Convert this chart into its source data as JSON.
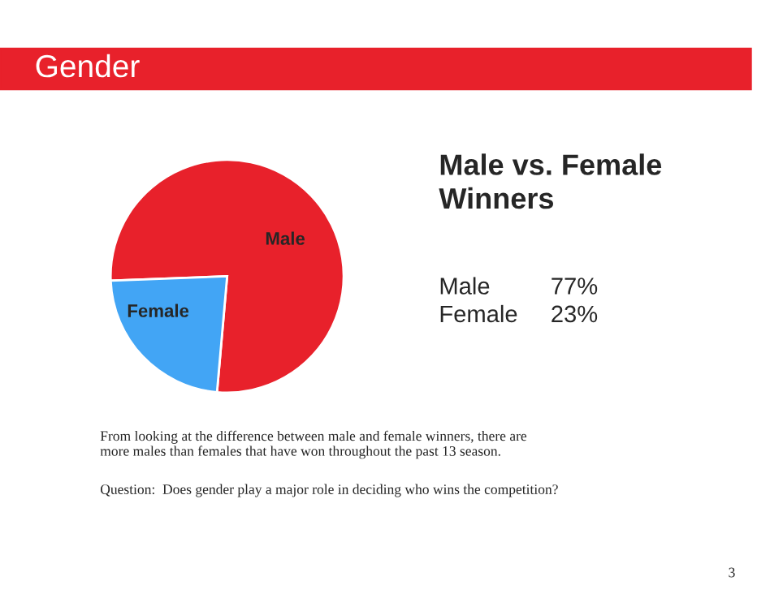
{
  "chart_data": {
    "type": "pie",
    "title": "Gender",
    "subtitle": "Male vs. Female\nWinners",
    "categories": [
      "Male",
      "Female"
    ],
    "values": [
      77,
      23
    ],
    "colors": [
      "#e8212b",
      "#42a5f5"
    ],
    "legend": false,
    "annotations": [
      "From looking at the difference between male and female winners, there are\nmore males than females that have won throughout the past 13 season.",
      "Question:  Does gender play a major role in deciding who wins the competition?",
      "3",
      "Male",
      "77%",
      "Female",
      "23%"
    ]
  }
}
